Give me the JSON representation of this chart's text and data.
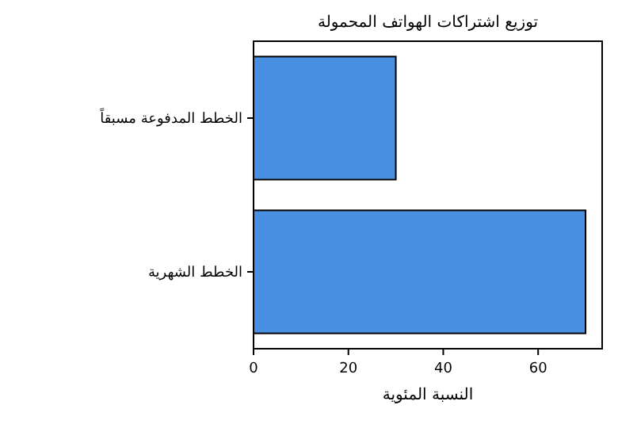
{
  "chart_data": {
    "type": "bar",
    "orientation": "horizontal",
    "title": "توزيع اشتراكات الهواتف المحمولة",
    "xlabel": "النسبة المئوية",
    "categories": [
      "الخطط المدفوعة مسبقاً",
      "الخطط الشهرية"
    ],
    "values": [
      30,
      70
    ],
    "color": "#4a90e2",
    "xlim": [
      0,
      73.5
    ],
    "xticks": [
      0,
      20,
      40,
      60
    ]
  }
}
